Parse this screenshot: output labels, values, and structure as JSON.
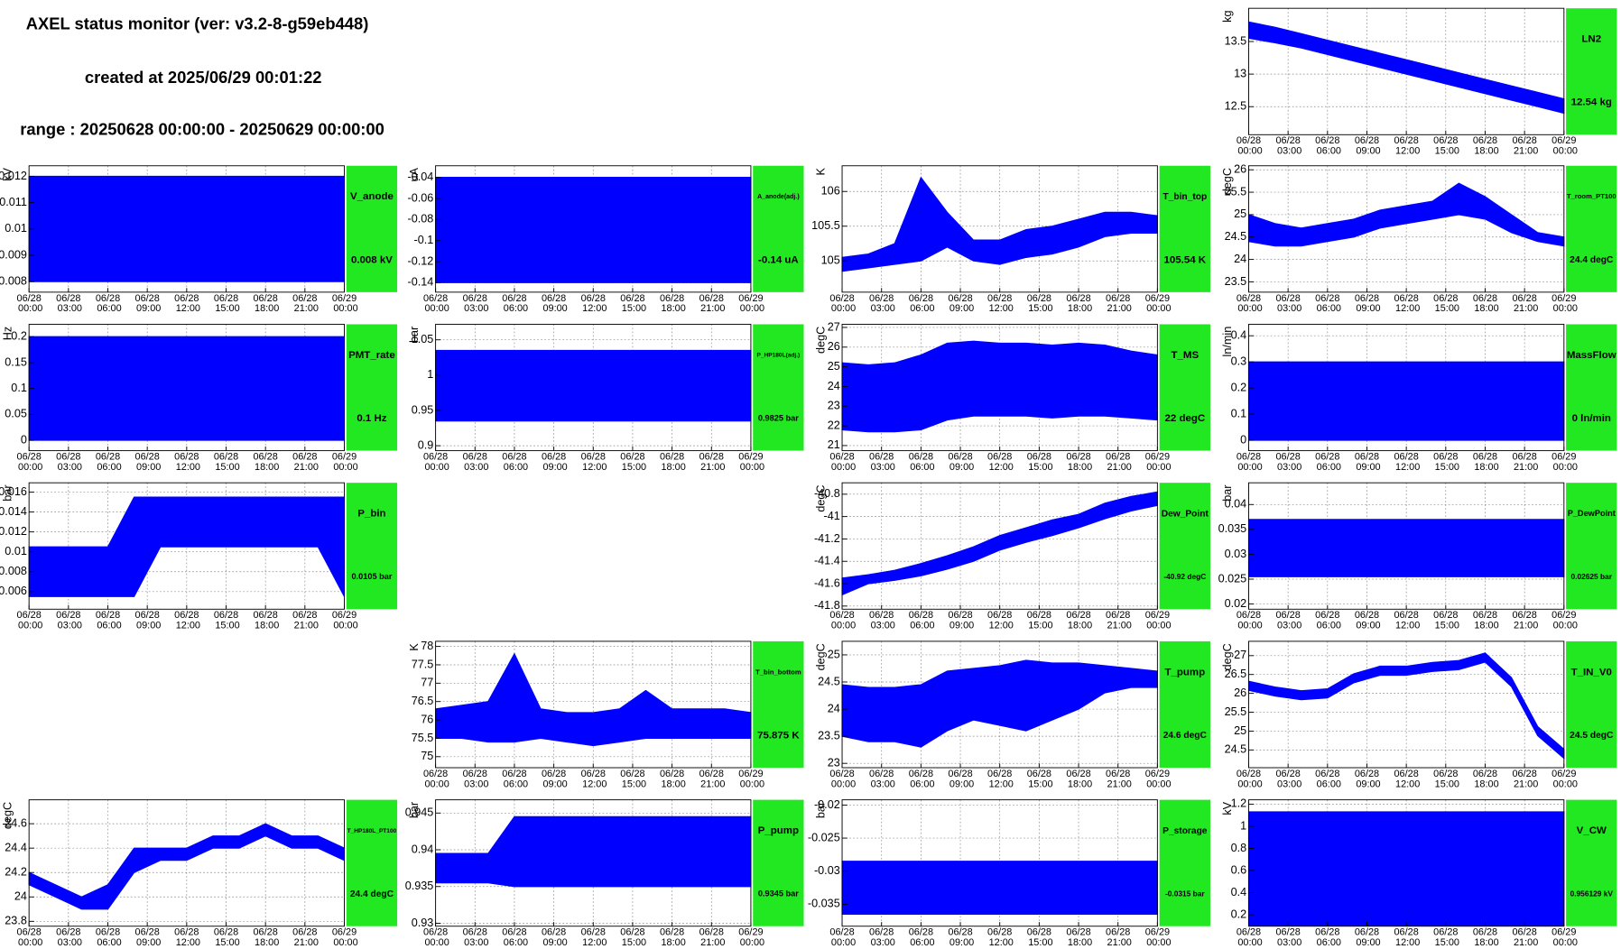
{
  "header": {
    "title": "AXEL status monitor (ver: v3.2-8-g59eb448)",
    "created": "created at 2025/06/29 00:01:22",
    "range": "range : 20250628 00:00:00 - 20250629 00:00:00"
  },
  "time_axis": {
    "xlim": [
      0,
      24
    ],
    "x": [
      0,
      2,
      4,
      6,
      8,
      10,
      12,
      14,
      16,
      18,
      20,
      22,
      24
    ],
    "xticks": [
      {
        "value": 0,
        "label": "06/28 00:00"
      },
      {
        "value": 3,
        "label": "06/28 03:00"
      },
      {
        "value": 6,
        "label": "06/28 06:00"
      },
      {
        "value": 9,
        "label": "06/28 09:00"
      },
      {
        "value": 12,
        "label": "06/28 12:00"
      },
      {
        "value": 15,
        "label": "06/28 15:00"
      },
      {
        "value": 18,
        "label": "06/28 18:00"
      },
      {
        "value": 21,
        "label": "06/28 21:00"
      },
      {
        "value": 24,
        "label": "06/29 00:00"
      }
    ]
  },
  "chart_data": [
    {
      "type": "area",
      "name": "LN2",
      "value_text": "12.54 kg",
      "ylabel": "kg",
      "color": "#0000ff",
      "grid": true,
      "ylim": [
        12.07,
        14.01
      ],
      "yticks": [
        12.5,
        13,
        13.5
      ],
      "low": [
        13.55,
        13.48,
        13.4,
        13.3,
        13.2,
        13.1,
        13.0,
        12.9,
        12.8,
        12.7,
        12.6,
        12.5,
        12.4
      ],
      "high": [
        13.8,
        13.72,
        13.62,
        13.52,
        13.42,
        13.32,
        13.22,
        13.12,
        13.02,
        12.92,
        12.82,
        12.72,
        12.62
      ]
    },
    {
      "type": "area",
      "name": "V_anode",
      "value_text": "0.008 kV",
      "ylabel": "kV",
      "color": "#0000ff",
      "grid": true,
      "ylim": [
        0.0076,
        0.0124
      ],
      "yticks": [
        0.008,
        0.009,
        0.01,
        0.011,
        0.012
      ],
      "low": [
        0.008,
        0.008,
        0.008,
        0.008,
        0.008,
        0.008,
        0.008,
        0.008,
        0.008,
        0.008,
        0.008,
        0.008,
        0.008
      ],
      "high": [
        0.012,
        0.012,
        0.012,
        0.012,
        0.012,
        0.012,
        0.012,
        0.012,
        0.012,
        0.012,
        0.012,
        0.012,
        0.012
      ]
    },
    {
      "type": "area",
      "name": "A_anode(adj.)",
      "value_text": "-0.14 uA",
      "ylabel": "uA",
      "color": "#0000ff",
      "grid": true,
      "ylim": [
        -0.149,
        -0.029
      ],
      "yticks": [
        -0.14,
        -0.12,
        -0.1,
        -0.08,
        -0.06,
        -0.04
      ],
      "low": [
        -0.14,
        -0.14,
        -0.14,
        -0.14,
        -0.14,
        -0.14,
        -0.14,
        -0.14,
        -0.14,
        -0.14,
        -0.14,
        -0.14,
        -0.14
      ],
      "high": [
        -0.04,
        -0.04,
        -0.04,
        -0.04,
        -0.04,
        -0.04,
        -0.04,
        -0.04,
        -0.04,
        -0.04,
        -0.04,
        -0.04,
        -0.04
      ]
    },
    {
      "type": "area",
      "name": "T_bin_top",
      "value_text": "105.54 K",
      "ylabel": "K",
      "color": "#0000ff",
      "grid": true,
      "ylim": [
        104.55,
        106.37
      ],
      "yticks": [
        105,
        105.5,
        106
      ],
      "low": [
        104.85,
        104.9,
        104.95,
        105.0,
        105.2,
        105.0,
        104.95,
        105.05,
        105.1,
        105.2,
        105.35,
        105.4,
        105.4
      ],
      "high": [
        105.05,
        105.1,
        105.25,
        106.2,
        105.7,
        105.3,
        105.3,
        105.45,
        105.5,
        105.6,
        105.7,
        105.7,
        105.65
      ]
    },
    {
      "type": "area",
      "name": "T_room_PT100",
      "value_text": "24.4 degC",
      "ylabel": "degC",
      "color": "#0000ff",
      "grid": true,
      "ylim": [
        23.27,
        26.09
      ],
      "yticks": [
        23.5,
        24,
        24.5,
        25,
        25.5,
        26
      ],
      "low": [
        24.4,
        24.3,
        24.3,
        24.4,
        24.5,
        24.7,
        24.8,
        24.9,
        25.0,
        24.9,
        24.6,
        24.4,
        24.3
      ],
      "high": [
        25.0,
        24.8,
        24.7,
        24.8,
        24.9,
        25.1,
        25.2,
        25.3,
        25.7,
        25.4,
        25.0,
        24.6,
        24.5
      ]
    },
    {
      "type": "area",
      "name": "PMT_rate",
      "value_text": "0.1 Hz",
      "ylabel": "Hz",
      "color": "#0000ff",
      "grid": true,
      "ylim": [
        -0.02,
        0.224
      ],
      "yticks": [
        0,
        0.05,
        0.1,
        0.15,
        0.2
      ],
      "low": [
        0,
        0,
        0,
        0,
        0,
        0,
        0,
        0,
        0,
        0,
        0,
        0,
        0
      ],
      "high": [
        0.2,
        0.2,
        0.2,
        0.2,
        0.2,
        0.2,
        0.2,
        0.2,
        0.2,
        0.2,
        0.2,
        0.2,
        0.2
      ]
    },
    {
      "type": "area",
      "name": "P_HP180L(adj.)",
      "value_text": "0.9825 bar",
      "ylabel": "bar",
      "color": "#0000ff",
      "grid": true,
      "ylim": [
        0.893,
        1.072
      ],
      "yticks": [
        0.9,
        0.95,
        1,
        1.05
      ],
      "low": [
        0.935,
        0.935,
        0.935,
        0.935,
        0.935,
        0.935,
        0.935,
        0.935,
        0.935,
        0.935,
        0.935,
        0.935,
        0.935
      ],
      "high": [
        1.035,
        1.035,
        1.035,
        1.035,
        1.035,
        1.035,
        1.035,
        1.035,
        1.035,
        1.035,
        1.035,
        1.035,
        1.035
      ]
    },
    {
      "type": "area",
      "name": "T_MS",
      "value_text": "22 degC",
      "ylabel": "degC",
      "color": "#0000ff",
      "grid": true,
      "ylim": [
        20.74,
        27.16
      ],
      "yticks": [
        21,
        22,
        23,
        24,
        25,
        26,
        27
      ],
      "low": [
        21.8,
        21.7,
        21.7,
        21.8,
        22.3,
        22.5,
        22.5,
        22.5,
        22.4,
        22.5,
        22.5,
        22.4,
        22.3
      ],
      "high": [
        25.2,
        25.1,
        25.2,
        25.6,
        26.2,
        26.3,
        26.2,
        26.2,
        26.1,
        26.2,
        26.1,
        25.8,
        25.6
      ]
    },
    {
      "type": "area",
      "name": "MassFlow",
      "value_text": "0 ln/min",
      "ylabel": "ln/min",
      "color": "#0000ff",
      "grid": true,
      "ylim": [
        -0.04,
        0.444
      ],
      "yticks": [
        0,
        0.1,
        0.2,
        0.3,
        0.4
      ],
      "low": [
        0,
        0,
        0,
        0,
        0,
        0,
        0,
        0,
        0,
        0,
        0,
        0,
        0
      ],
      "high": [
        0.3,
        0.3,
        0.3,
        0.3,
        0.3,
        0.3,
        0.3,
        0.3,
        0.3,
        0.3,
        0.3,
        0.3,
        0.3
      ]
    },
    {
      "type": "area",
      "name": "P_bin",
      "value_text": "0.0105 bar",
      "ylabel": "bar",
      "color": "#0000ff",
      "grid": true,
      "ylim": [
        0.00423,
        0.01694
      ],
      "yticks": [
        0.006,
        0.008,
        0.01,
        0.012,
        0.014,
        0.016
      ],
      "low": [
        0.0055,
        0.0055,
        0.0055,
        0.0055,
        0.0055,
        0.0105,
        0.0105,
        0.0105,
        0.0105,
        0.0105,
        0.0105,
        0.0105,
        0.0055
      ],
      "high": [
        0.0105,
        0.0105,
        0.0105,
        0.0105,
        0.0155,
        0.0155,
        0.0155,
        0.0155,
        0.0155,
        0.0155,
        0.0155,
        0.0155,
        0.0155
      ]
    },
    {
      "type": "area",
      "name": "Dew_Point",
      "value_text": "-40.92 degC",
      "ylabel": "degC",
      "color": "#0000ff",
      "grid": true,
      "ylim": [
        -41.828,
        -40.698
      ],
      "yticks": [
        -41.8,
        -41.6,
        -41.4,
        -41.2,
        -41,
        -40.8
      ],
      "low": [
        -41.7,
        -41.6,
        -41.57,
        -41.53,
        -41.47,
        -41.4,
        -41.3,
        -41.23,
        -41.17,
        -41.1,
        -41.02,
        -40.95,
        -40.9
      ],
      "high": [
        -41.55,
        -41.52,
        -41.48,
        -41.42,
        -41.35,
        -41.27,
        -41.17,
        -41.1,
        -41.03,
        -40.98,
        -40.88,
        -40.82,
        -40.78
      ]
    },
    {
      "type": "area",
      "name": "P_DewPoint",
      "value_text": "0.02625 bar",
      "ylabel": "bar",
      "color": "#0000ff",
      "grid": true,
      "ylim": [
        0.01896,
        0.04437
      ],
      "yticks": [
        0.02,
        0.025,
        0.03,
        0.035,
        0.04
      ],
      "low": [
        0.0255,
        0.0255,
        0.0255,
        0.0255,
        0.0255,
        0.0255,
        0.0255,
        0.0255,
        0.0255,
        0.0255,
        0.0255,
        0.0255,
        0.0255
      ],
      "high": [
        0.037,
        0.037,
        0.037,
        0.037,
        0.037,
        0.037,
        0.037,
        0.037,
        0.037,
        0.037,
        0.037,
        0.037,
        0.037
      ]
    },
    {
      "type": "area",
      "name": "T_bin_bottom",
      "value_text": "75.875 K",
      "ylabel": "K",
      "color": "#0000ff",
      "grid": true,
      "ylim": [
        74.7,
        78.14
      ],
      "yticks": [
        75,
        75.5,
        76,
        76.5,
        77,
        77.5,
        78
      ],
      "low": [
        75.5,
        75.5,
        75.4,
        75.4,
        75.5,
        75.4,
        75.3,
        75.4,
        75.5,
        75.5,
        75.5,
        75.5,
        75.5
      ],
      "high": [
        76.3,
        76.4,
        76.5,
        77.8,
        76.3,
        76.2,
        76.2,
        76.3,
        76.8,
        76.3,
        76.3,
        76.3,
        76.2
      ]
    },
    {
      "type": "area",
      "name": "T_pump",
      "value_text": "24.6 degC",
      "ylabel": "degC",
      "color": "#0000ff",
      "grid": true,
      "ylim": [
        22.92,
        25.25
      ],
      "yticks": [
        23,
        23.5,
        24,
        24.5,
        25
      ],
      "low": [
        23.5,
        23.4,
        23.4,
        23.3,
        23.6,
        23.8,
        23.7,
        23.6,
        23.8,
        24.0,
        24.3,
        24.4,
        24.4
      ],
      "high": [
        24.45,
        24.4,
        24.4,
        24.45,
        24.7,
        24.75,
        24.8,
        24.9,
        24.85,
        24.85,
        24.8,
        24.75,
        24.7
      ]
    },
    {
      "type": "area",
      "name": "T_IN_V0",
      "value_text": "24.5 degC",
      "ylabel": "degC",
      "color": "#0000ff",
      "grid": true,
      "ylim": [
        24.03,
        27.38
      ],
      "yticks": [
        24.5,
        25,
        25.5,
        26,
        26.5,
        27
      ],
      "low": [
        26.08,
        25.93,
        25.83,
        25.88,
        26.28,
        26.48,
        26.48,
        26.58,
        26.63,
        26.83,
        26.18,
        24.88,
        24.28
      ],
      "high": [
        26.32,
        26.17,
        26.07,
        26.12,
        26.52,
        26.72,
        26.72,
        26.82,
        26.87,
        27.07,
        26.42,
        25.12,
        24.52
      ]
    },
    {
      "type": "area",
      "name": "T_HP180L_PT100",
      "value_text": "24.4 degC",
      "ylabel": "degC",
      "color": "#0000ff",
      "grid": true,
      "ylim": [
        23.76,
        24.796
      ],
      "yticks": [
        23.8,
        24,
        24.2,
        24.4,
        24.6
      ],
      "low": [
        24.1,
        24.0,
        23.9,
        23.9,
        24.2,
        24.3,
        24.3,
        24.4,
        24.4,
        24.5,
        24.4,
        24.4,
        24.3
      ],
      "high": [
        24.2,
        24.1,
        24.0,
        24.1,
        24.4,
        24.4,
        24.4,
        24.5,
        24.5,
        24.6,
        24.5,
        24.5,
        24.4
      ]
    },
    {
      "type": "area",
      "name": "P_pump",
      "value_text": "0.9345 bar",
      "ylabel": "bar",
      "color": "#0000ff",
      "grid": true,
      "ylim": [
        0.9296,
        0.9468
      ],
      "yticks": [
        0.93,
        0.935,
        0.94,
        0.945
      ],
      "low": [
        0.9355,
        0.9355,
        0.9355,
        0.935,
        0.935,
        0.935,
        0.935,
        0.935,
        0.935,
        0.935,
        0.935,
        0.935,
        0.935
      ],
      "high": [
        0.9395,
        0.9395,
        0.9395,
        0.9445,
        0.9445,
        0.9445,
        0.9445,
        0.9445,
        0.9445,
        0.9445,
        0.9445,
        0.9445,
        0.9445
      ]
    },
    {
      "type": "area",
      "name": "P_storage",
      "value_text": "-0.0315 bar",
      "ylabel": "bar",
      "color": "#0000ff",
      "grid": true,
      "ylim": [
        -0.03832,
        -0.01921
      ],
      "yticks": [
        -0.035,
        -0.03,
        -0.025,
        -0.02
      ],
      "low": [
        -0.0365,
        -0.0365,
        -0.0365,
        -0.0365,
        -0.0365,
        -0.0365,
        -0.0365,
        -0.0365,
        -0.0365,
        -0.0365,
        -0.0365,
        -0.0365,
        -0.0365
      ],
      "high": [
        -0.0285,
        -0.0285,
        -0.0285,
        -0.0285,
        -0.0285,
        -0.0285,
        -0.0285,
        -0.0285,
        -0.0285,
        -0.0285,
        -0.0285,
        -0.0285,
        -0.0285
      ]
    },
    {
      "type": "area",
      "name": "V_CW",
      "value_text": "0.956129 kV",
      "ylabel": "kV",
      "color": "#0000ff",
      "grid": true,
      "ylim": [
        0.0966,
        1.239
      ],
      "yticks": [
        0.2,
        0.4,
        0.6,
        0.8,
        1,
        1.2
      ],
      "low": [
        0.1,
        0.1,
        0.1,
        0.1,
        0.1,
        0.1,
        0.1,
        0.1,
        0.1,
        0.1,
        0.1,
        0.1,
        0.1
      ],
      "high": [
        1.13,
        1.13,
        1.13,
        1.13,
        1.13,
        1.13,
        1.13,
        1.13,
        1.13,
        1.13,
        1.13,
        1.13,
        1.13
      ]
    }
  ]
}
